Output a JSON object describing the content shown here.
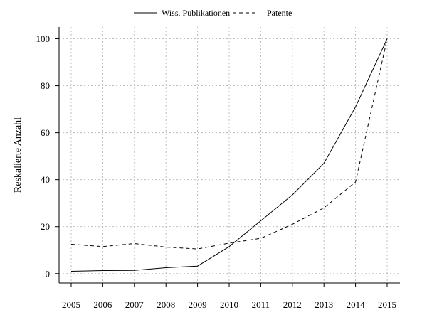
{
  "chart_data": {
    "type": "line",
    "title": "",
    "xlabel": "",
    "ylabel": "Reskalierte Anzahl",
    "x": [
      2005,
      2006,
      2007,
      2008,
      2009,
      2010,
      2011,
      2012,
      2013,
      2014,
      2015
    ],
    "x_tick_labels": [
      "2005",
      "2006",
      "2007",
      "2008",
      "2009",
      "2010",
      "2011",
      "2012",
      "2013",
      "2014",
      "2015"
    ],
    "y_ticks": [
      0,
      20,
      40,
      60,
      80,
      100
    ],
    "y_tick_labels": [
      "0",
      "20",
      "40",
      "60",
      "80",
      "100"
    ],
    "xlim": [
      2005,
      2015
    ],
    "ylim": [
      -4,
      105
    ],
    "grid": true,
    "legend_position": "top",
    "series": [
      {
        "name": "Wiss. Publikationen",
        "line_style": "solid",
        "color": "#000000",
        "values": [
          1,
          1.3,
          1.4,
          2.5,
          3.2,
          11.5,
          22.5,
          33.5,
          47,
          71,
          100
        ]
      },
      {
        "name": "Patente",
        "line_style": "dashed",
        "color": "#000000",
        "values": [
          12.5,
          11.5,
          12.8,
          11.3,
          10.5,
          13,
          15,
          21,
          28,
          39,
          100
        ]
      }
    ]
  }
}
